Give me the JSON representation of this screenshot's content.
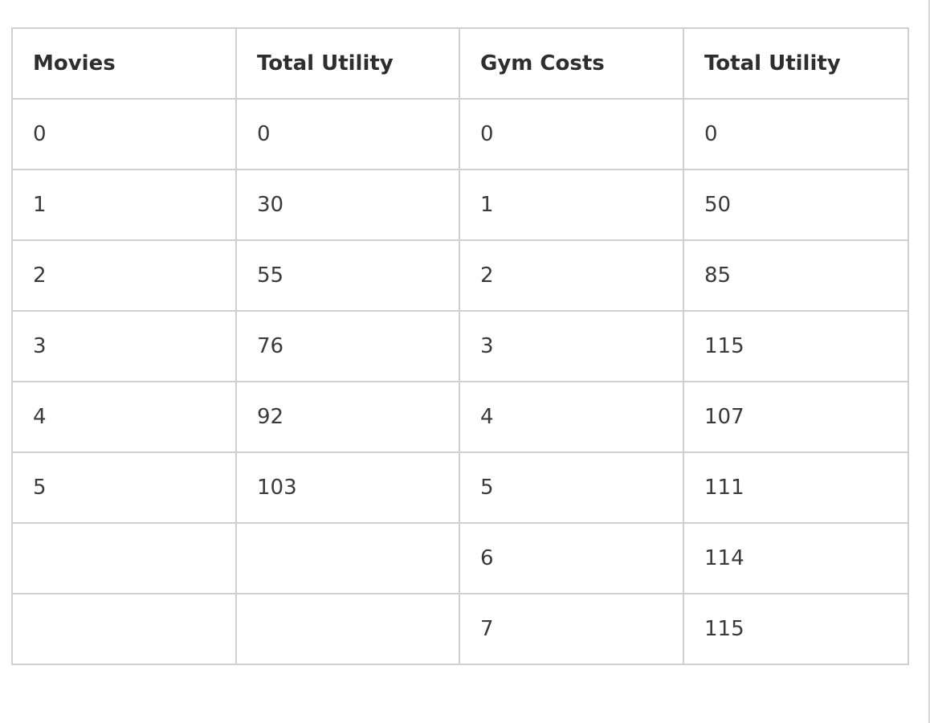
{
  "table": {
    "headers": [
      "Movies",
      "Total Utility",
      "Gym Costs",
      "Total Utility"
    ],
    "rows": [
      [
        "0",
        "0",
        "0",
        "0"
      ],
      [
        "1",
        "30",
        "1",
        "50"
      ],
      [
        "2",
        "55",
        "2",
        "85"
      ],
      [
        "3",
        "76",
        "3",
        "115"
      ],
      [
        "4",
        "92",
        "4",
        "107"
      ],
      [
        "5",
        "103",
        "5",
        "111"
      ],
      [
        "",
        "",
        "6",
        "114"
      ],
      [
        "",
        "",
        "7",
        "115"
      ]
    ]
  }
}
